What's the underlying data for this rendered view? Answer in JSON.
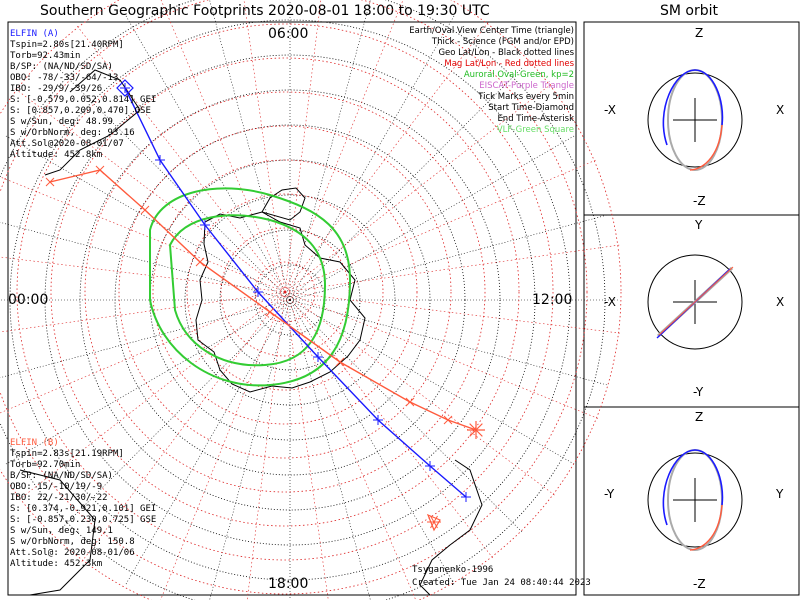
{
  "title": "Southern Geographic Footprints 2020-08-01 18:00 to 19:30 UTC",
  "orbit_title": "SM orbit",
  "hours": {
    "top": "06:00",
    "left": "00:00",
    "right": "12:00",
    "bottom": "18:00"
  },
  "legend": [
    {
      "text": "Earth/Oval View Center Time (triangle)",
      "color": "#000000"
    },
    {
      "text": "Thick - Science (FGM and/or EPD)",
      "color": "#000000"
    },
    {
      "text": "Geo Lat/Lon - Black dotted lines",
      "color": "#000000"
    },
    {
      "text": "Mag Lat/Lon - Red dotted lines",
      "color": "#e00000"
    },
    {
      "text": "Auroral Oval-Green, kp=2",
      "color": "#22bb22"
    },
    {
      "text": "EISCAT-Purple Triangle",
      "color": "#cc66cc"
    },
    {
      "text": "Tick Marks every 5min",
      "color": "#000000"
    },
    {
      "text": "Start Time-Diamond",
      "color": "#000000"
    },
    {
      "text": "End Time-Asterisk",
      "color": "#000000"
    },
    {
      "text": "VLF-Green Square",
      "color": "#66dd66"
    }
  ],
  "elfin_a": {
    "header": "ELFIN (A)",
    "color": "#1a1aff",
    "lines": [
      "Tspin=2.80s[21.40RPM]",
      "Torb=92.43min",
      "B/SP: (NA/ND/SD/SA)",
      "OBO: -78/-33/-64/-13",
      "IBO: -29/9/-39/26",
      "S: [-0.579,0.052,0.814] GEI",
      "S: [0.857,0.209,0.470] GSE",
      "S w/Sun, deg: 48.99",
      "S w/OrbNorm, deg: 93.16",
      "Att.Sol@2020-08-01/07",
      "Altitude: 452.8km"
    ]
  },
  "elfin_b": {
    "header": "ELFIN (B)",
    "color": "#ff5a3c",
    "lines": [
      "Tspin=2.83s[21.19RPM]",
      "Torb=92.70min",
      "B/SP: (NA/ND/SD/SA)",
      "OBO: 15/-10/19/-9",
      "IBO: 22/-21/30/-22",
      "S: [0.374,-0.921,0.101] GEI",
      "S: [-0.857,0.230,0.725] GSE",
      "S w/Sun, deg: 149.1",
      "S w/OrbNorm, deg: 150.8",
      "Att.Sol@: 2020-08-01/06",
      "Altitude: 452.3km"
    ]
  },
  "credit": "Tsyganenko-1996",
  "created": "Created: Tue Jan 24 08:40:44 2023",
  "panels": [
    {
      "top": "Z",
      "bottom": "-Z",
      "left": "-X",
      "right": "X"
    },
    {
      "top": "Y",
      "bottom": "-Y",
      "left": "-X",
      "right": "X"
    },
    {
      "top": "Z",
      "bottom": "-Z",
      "left": "-Y",
      "right": "Y"
    }
  ],
  "colors": {
    "blue": "#1a1aff",
    "orange": "#ff5a3c",
    "green": "#33cc33",
    "red_dotted": "#dd2222",
    "land": "#000000",
    "orbit_gray": "#aaaaaa"
  }
}
